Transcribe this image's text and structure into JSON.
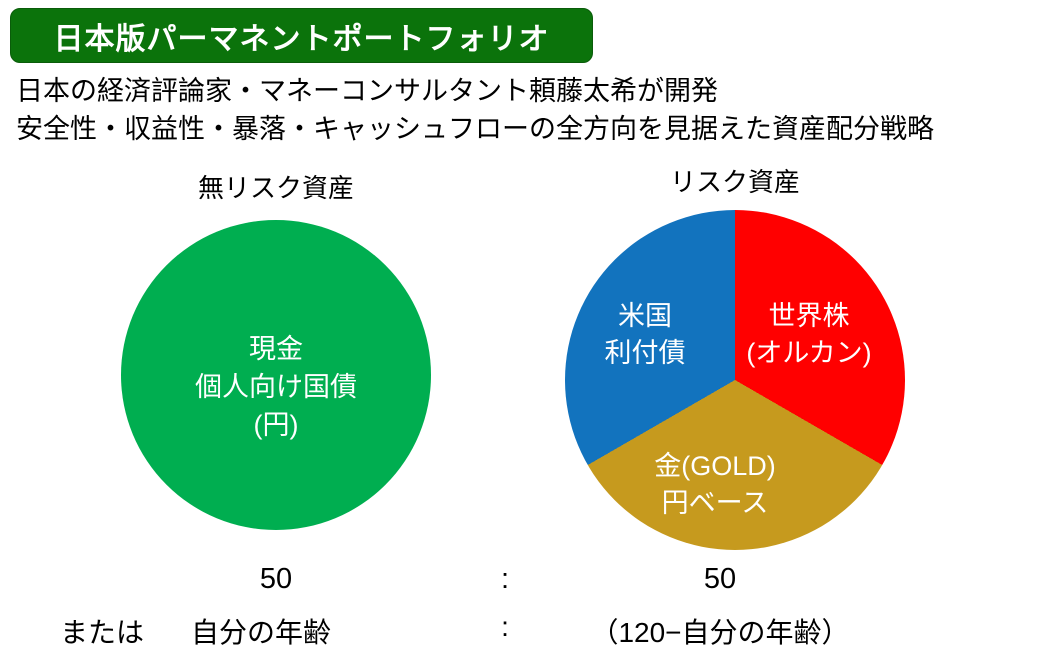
{
  "header": {
    "badge_label": "日本版パーマネントポートフォリオ",
    "badge_bg": "#0B730B"
  },
  "description": {
    "line1": "日本の経済評論家・マネーコンサルタント頼藤太希が開発",
    "line2": "安全性・収益性・暴落・キャッシュフローの全方向を見据えた資産配分戦略"
  },
  "chart_data": [
    {
      "type": "pie",
      "title": "無リスク資産",
      "slices": [
        {
          "label": "現金 個人向け国債 (円)",
          "value": 100,
          "color": "#00AE50"
        }
      ],
      "legend_position": "inside",
      "label_color": "#ffffff"
    },
    {
      "type": "pie",
      "title": "リスク資産",
      "start_angle_deg": 0,
      "direction": "clockwise",
      "slices": [
        {
          "label": "世界株 (オルカン)",
          "value": 33.3,
          "color": "#FF0000"
        },
        {
          "label": "金(GOLD) 円ベース",
          "value": 33.3,
          "color": "#C69A1E"
        },
        {
          "label": "米国 利付債",
          "value": 33.3,
          "color": "#1273BE"
        }
      ],
      "legend_position": "inside",
      "label_color": "#ffffff"
    }
  ],
  "left_chart": {
    "inner_line1": "現金",
    "inner_line2": "個人向け国債",
    "inner_line3": "(円)"
  },
  "right_chart": {
    "blue_line1": "米国",
    "blue_line2": "利付債",
    "red_line1": "世界株",
    "red_line2": "(オルカン)",
    "gold_line1": "金(GOLD)",
    "gold_line2": "円ベース"
  },
  "ratio": {
    "row1_left": "50",
    "row1_colon": ":",
    "row1_right": "50",
    "row2_prefix": "または",
    "row2_left": "自分の年齢",
    "row2_colon": ":",
    "row2_right": "（120−自分の年齢）"
  }
}
